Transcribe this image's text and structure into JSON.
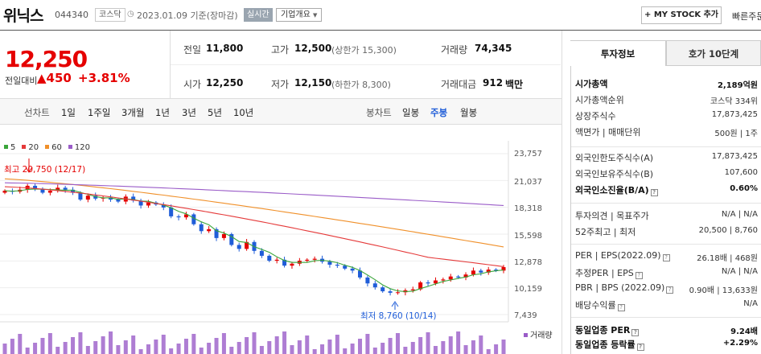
{
  "header": {
    "name": "위닉스",
    "code": "044340",
    "market": "코스닥",
    "date": "2023.01.09 기준(장마감)",
    "live": "실시간",
    "overview": "기업개요",
    "mystock": "+ MY STOCK 추가",
    "quick": "빠른주문"
  },
  "price": {
    "current": "12,250",
    "change_label": "전일대비",
    "change": "▲450",
    "change_pct": "+3.81%"
  },
  "quote": {
    "prev_k": "전일",
    "prev_v": "11,800",
    "high_k": "고가",
    "high_v": "12,500",
    "upper": "(상한가 15,300)",
    "vol_k": "거래량",
    "vol_v": "74,345",
    "open_k": "시가",
    "open_v": "12,250",
    "low_k": "저가",
    "low_v": "12,150",
    "lower": "(하한가 8,300)",
    "amt_k": "거래대금",
    "amt_v": "912",
    "amt_u": "백만"
  },
  "chart_tabs": {
    "line_label": "선차트",
    "line_tabs": [
      "1일",
      "1주일",
      "3개월",
      "1년",
      "3년",
      "5년",
      "10년"
    ],
    "candle_label": "봉차트",
    "candle_tabs": [
      "일봉",
      "주봉",
      "월봉"
    ],
    "active": "주봉"
  },
  "chart_data": {
    "type": "candlestick",
    "period": "weekly",
    "ma_legend": [
      "5",
      "20",
      "60",
      "120"
    ],
    "ma_colors": [
      "#3aa53a",
      "#e53a3a",
      "#f0902a",
      "#9a5cc8"
    ],
    "yaxis": [
      "23,757",
      "21,037",
      "18,318",
      "15,598",
      "12,878",
      "10,159",
      "7,439"
    ],
    "ylim": [
      7439,
      23757
    ],
    "high_note": "최고 20,750 (12/17)",
    "low_note": "최저 8,760 (10/14)",
    "volume_label": "거래량"
  },
  "right": {
    "tab_info": "투자정보",
    "tab_order": "호가 10단계",
    "rows": [
      {
        "k": "시가총액",
        "v": "2,189억원",
        "b": true
      },
      {
        "k": "시가총액순위",
        "v": "코스닥 334위"
      },
      {
        "k": "상장주식수",
        "v": "17,873,425"
      },
      {
        "k": "액면가 | 매매단위",
        "v": "500원 | 1주"
      },
      {
        "k": "외국인한도주식수(A)",
        "v": "17,873,425"
      },
      {
        "k": "외국인보유주식수(B)",
        "v": "107,600"
      },
      {
        "k": "외국인소진율(B/A)",
        "v": "0.60%",
        "b": true,
        "doc": true
      },
      {
        "k": "투자의견 | 목표주가",
        "v": "N/A | N/A"
      },
      {
        "k": "52주최고 | 최저",
        "v": "20,500 | 8,760"
      },
      {
        "k": "PER | EPS(2022.09)",
        "v": "26.18배 | 468원",
        "doc": true
      },
      {
        "k": "추정PER | EPS",
        "v": "N/A | N/A",
        "doc": true
      },
      {
        "k": "PBR | BPS (2022.09)",
        "v": "0.90배 | 13,633원",
        "doc": true
      },
      {
        "k": "배당수익률",
        "v": "N/A",
        "doc": true
      },
      {
        "k": "동일업종 PER",
        "v": "9.24배",
        "b": true,
        "doc": true
      },
      {
        "k": "동일업종 등락률",
        "v": "+2.29%",
        "b": true,
        "doc": true,
        "up": true
      }
    ]
  }
}
